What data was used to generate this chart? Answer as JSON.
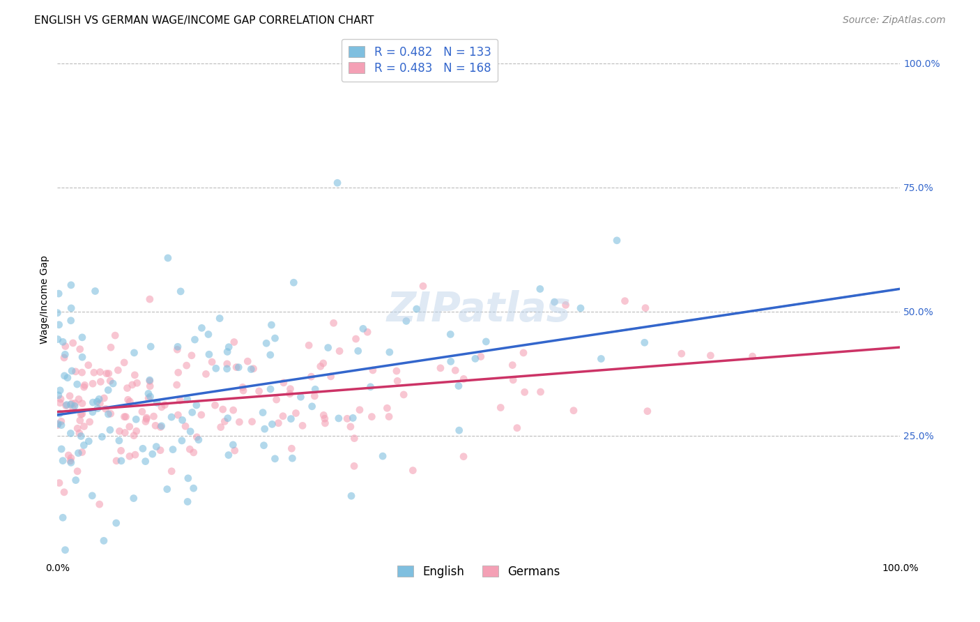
{
  "title": "ENGLISH VS GERMAN WAGE/INCOME GAP CORRELATION CHART",
  "source": "Source: ZipAtlas.com",
  "ylabel": "Wage/Income Gap",
  "xlabel": "",
  "watermark": "ZIPatlas",
  "legend_r_english": "0.482",
  "legend_n_english": "133",
  "legend_r_german": "0.483",
  "legend_n_german": "168",
  "blue_color": "#7fbfdf",
  "blue_line_color": "#3366cc",
  "pink_color": "#f4a0b5",
  "pink_line_color": "#cc3366",
  "blue_scatter_alpha": 0.6,
  "pink_scatter_alpha": 0.6,
  "blue_marker_size": 60,
  "pink_marker_size": 60,
  "N_english": 133,
  "N_german": 168,
  "seed_english": 42,
  "seed_german": 99,
  "dashed_line_color": "#aaaaaa",
  "title_fontsize": 11,
  "axis_label_fontsize": 10,
  "tick_label_fontsize": 10,
  "legend_fontsize": 12,
  "source_fontsize": 10,
  "watermark_fontsize": 42,
  "watermark_color": "#b8cfe8",
  "watermark_alpha": 0.45,
  "background_color": "#ffffff",
  "grid_color": "#bbbbbb",
  "text_color_blue": "#3366cc",
  "text_color_black": "#000000"
}
